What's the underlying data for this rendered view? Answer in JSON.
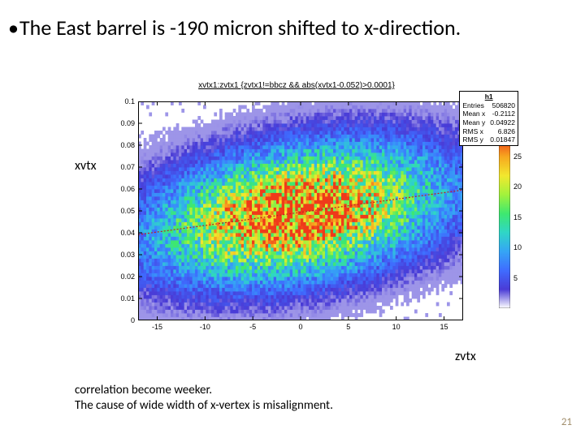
{
  "bullet": "The East barrel is -190 micron shifted to x-direction.",
  "axis_y_label": "xvtx",
  "axis_x_label": "zvtx",
  "caption_line1": "correlation become weeker.",
  "caption_line2": "The cause of wide width of x-vertex is misalignment.",
  "page_number": "21",
  "chart": {
    "title": "xvtx1:zvtx1 {zvtx1!=bbcz && abs(xvtx1-0.052)>0.0001}",
    "type": "heatmap",
    "stats": {
      "name": "h1",
      "entries": "506820",
      "mean_x": "-0.2112",
      "mean_y": "0.04922",
      "rms_x": "6.826",
      "rms_y": "0.01847"
    },
    "xlim": [
      -17,
      17
    ],
    "ylim": [
      0,
      0.1
    ],
    "x_ticks": [
      -15,
      -10,
      -5,
      0,
      5,
      10,
      15
    ],
    "y_ticks": [
      0,
      0.01,
      0.02,
      0.03,
      0.04,
      0.05,
      0.06,
      0.07,
      0.08,
      0.09,
      0.1
    ],
    "colorbar_ticks": [
      5,
      10,
      15,
      20,
      25
    ],
    "colorbar_range": [
      0,
      28
    ],
    "colorbar_colors": [
      "#ffffff",
      "#4a3bd6",
      "#3f6cff",
      "#35a5f5",
      "#2fd6c6",
      "#3ee86f",
      "#a2f23c",
      "#f2e82e",
      "#f7a81f",
      "#ef3a1a"
    ],
    "background_color": "#ffffff",
    "frame_color": "#000000",
    "fit_line": {
      "color": "#c02020",
      "width": 1.2
    },
    "noise_seed": 42
  }
}
